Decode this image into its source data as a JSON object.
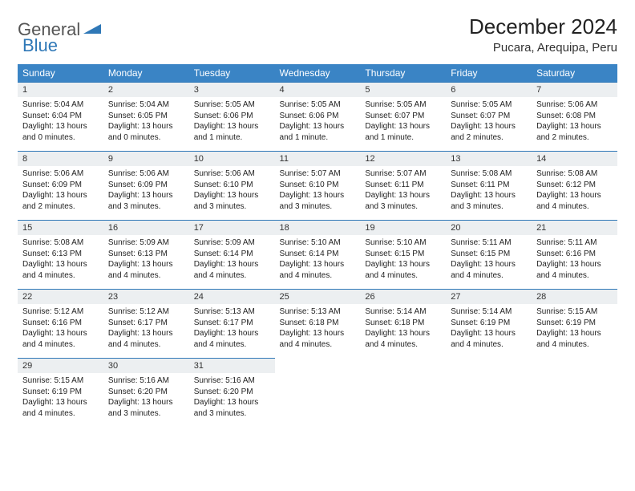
{
  "brand": {
    "part1": "General",
    "part2": "Blue"
  },
  "title": "December 2024",
  "location": "Pucara, Arequipa, Peru",
  "colors": {
    "header_bg": "#3a84c5",
    "header_text": "#ffffff",
    "rule": "#2f78b7",
    "daynum_bg": "#eceff1",
    "body_text": "#222222",
    "brand_gray": "#555555",
    "brand_blue": "#2f78b7",
    "page_bg": "#ffffff"
  },
  "typography": {
    "title_fontsize": 26,
    "location_fontsize": 15,
    "weekday_fontsize": 12,
    "daynum_fontsize": 11,
    "body_fontsize": 10,
    "logo_fontsize": 22
  },
  "weekdays": [
    "Sunday",
    "Monday",
    "Tuesday",
    "Wednesday",
    "Thursday",
    "Friday",
    "Saturday"
  ],
  "weeks": [
    [
      {
        "n": "1",
        "sr": "5:04 AM",
        "ss": "6:04 PM",
        "dl": "13 hours and 0 minutes."
      },
      {
        "n": "2",
        "sr": "5:04 AM",
        "ss": "6:05 PM",
        "dl": "13 hours and 0 minutes."
      },
      {
        "n": "3",
        "sr": "5:05 AM",
        "ss": "6:06 PM",
        "dl": "13 hours and 1 minute."
      },
      {
        "n": "4",
        "sr": "5:05 AM",
        "ss": "6:06 PM",
        "dl": "13 hours and 1 minute."
      },
      {
        "n": "5",
        "sr": "5:05 AM",
        "ss": "6:07 PM",
        "dl": "13 hours and 1 minute."
      },
      {
        "n": "6",
        "sr": "5:05 AM",
        "ss": "6:07 PM",
        "dl": "13 hours and 2 minutes."
      },
      {
        "n": "7",
        "sr": "5:06 AM",
        "ss": "6:08 PM",
        "dl": "13 hours and 2 minutes."
      }
    ],
    [
      {
        "n": "8",
        "sr": "5:06 AM",
        "ss": "6:09 PM",
        "dl": "13 hours and 2 minutes."
      },
      {
        "n": "9",
        "sr": "5:06 AM",
        "ss": "6:09 PM",
        "dl": "13 hours and 3 minutes."
      },
      {
        "n": "10",
        "sr": "5:06 AM",
        "ss": "6:10 PM",
        "dl": "13 hours and 3 minutes."
      },
      {
        "n": "11",
        "sr": "5:07 AM",
        "ss": "6:10 PM",
        "dl": "13 hours and 3 minutes."
      },
      {
        "n": "12",
        "sr": "5:07 AM",
        "ss": "6:11 PM",
        "dl": "13 hours and 3 minutes."
      },
      {
        "n": "13",
        "sr": "5:08 AM",
        "ss": "6:11 PM",
        "dl": "13 hours and 3 minutes."
      },
      {
        "n": "14",
        "sr": "5:08 AM",
        "ss": "6:12 PM",
        "dl": "13 hours and 4 minutes."
      }
    ],
    [
      {
        "n": "15",
        "sr": "5:08 AM",
        "ss": "6:13 PM",
        "dl": "13 hours and 4 minutes."
      },
      {
        "n": "16",
        "sr": "5:09 AM",
        "ss": "6:13 PM",
        "dl": "13 hours and 4 minutes."
      },
      {
        "n": "17",
        "sr": "5:09 AM",
        "ss": "6:14 PM",
        "dl": "13 hours and 4 minutes."
      },
      {
        "n": "18",
        "sr": "5:10 AM",
        "ss": "6:14 PM",
        "dl": "13 hours and 4 minutes."
      },
      {
        "n": "19",
        "sr": "5:10 AM",
        "ss": "6:15 PM",
        "dl": "13 hours and 4 minutes."
      },
      {
        "n": "20",
        "sr": "5:11 AM",
        "ss": "6:15 PM",
        "dl": "13 hours and 4 minutes."
      },
      {
        "n": "21",
        "sr": "5:11 AM",
        "ss": "6:16 PM",
        "dl": "13 hours and 4 minutes."
      }
    ],
    [
      {
        "n": "22",
        "sr": "5:12 AM",
        "ss": "6:16 PM",
        "dl": "13 hours and 4 minutes."
      },
      {
        "n": "23",
        "sr": "5:12 AM",
        "ss": "6:17 PM",
        "dl": "13 hours and 4 minutes."
      },
      {
        "n": "24",
        "sr": "5:13 AM",
        "ss": "6:17 PM",
        "dl": "13 hours and 4 minutes."
      },
      {
        "n": "25",
        "sr": "5:13 AM",
        "ss": "6:18 PM",
        "dl": "13 hours and 4 minutes."
      },
      {
        "n": "26",
        "sr": "5:14 AM",
        "ss": "6:18 PM",
        "dl": "13 hours and 4 minutes."
      },
      {
        "n": "27",
        "sr": "5:14 AM",
        "ss": "6:19 PM",
        "dl": "13 hours and 4 minutes."
      },
      {
        "n": "28",
        "sr": "5:15 AM",
        "ss": "6:19 PM",
        "dl": "13 hours and 4 minutes."
      }
    ],
    [
      {
        "n": "29",
        "sr": "5:15 AM",
        "ss": "6:19 PM",
        "dl": "13 hours and 4 minutes."
      },
      {
        "n": "30",
        "sr": "5:16 AM",
        "ss": "6:20 PM",
        "dl": "13 hours and 3 minutes."
      },
      {
        "n": "31",
        "sr": "5:16 AM",
        "ss": "6:20 PM",
        "dl": "13 hours and 3 minutes."
      },
      null,
      null,
      null,
      null
    ]
  ],
  "labels": {
    "sunrise": "Sunrise:",
    "sunset": "Sunset:",
    "daylight": "Daylight:"
  }
}
